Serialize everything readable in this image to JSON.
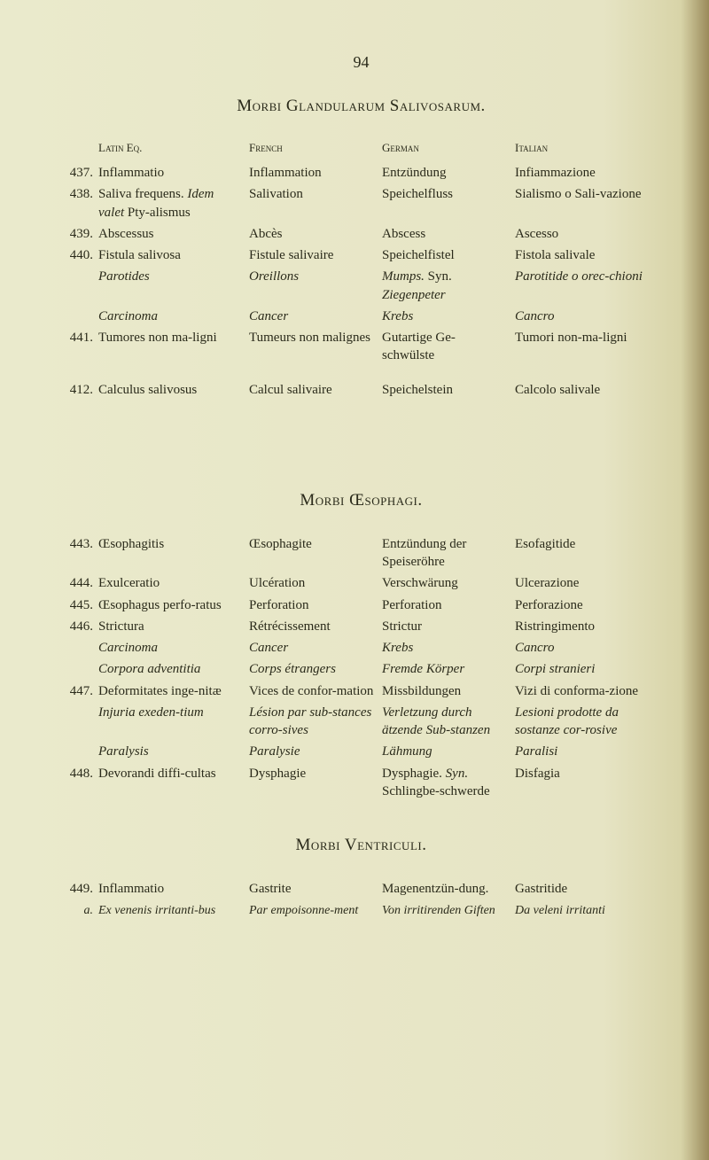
{
  "page_number": "94",
  "section1": {
    "title": "Morbi Glandularum Salivosarum.",
    "headers": {
      "latin": "Latin Eq.",
      "french": "French",
      "german": "German",
      "italian": "Italian"
    },
    "rows": [
      {
        "num": "437.",
        "latin": "Inflammatio",
        "french": "Inflammation",
        "german": "Entzündung",
        "italian": "Infiammazione"
      },
      {
        "num": "438.",
        "latin_html": "Saliva frequens. <span class='ital'>Idem valet</span> Pty-alismus",
        "french": "Salivation",
        "german": "Speichelfluss",
        "italian": "Sialismo o Sali-vazione"
      },
      {
        "num": "439.",
        "latin": "Abscessus",
        "french": "Abcès",
        "german": "Abscess",
        "italian": "Ascesso"
      },
      {
        "num": "440.",
        "latin": "Fistula salivosa",
        "french": "Fistule salivaire",
        "german": "Speichelfistel",
        "italian": "Fistola salivale"
      },
      {
        "num": "",
        "latin_html": "<span class='ital'>Parotides</span>",
        "french_html": "<span class='ital'>Oreillons</span>",
        "german_html": "<span class='ital'>Mumps.</span> Syn. <span class='ital'>Ziegenpeter</span>",
        "italian_html": "<span class='ital'>Parotitide o orec-chioni</span>"
      },
      {
        "num": "",
        "latin_html": "<span class='ital'>Carcinoma</span>",
        "french_html": "<span class='ital'>Cancer</span>",
        "german_html": "<span class='ital'>Krebs</span>",
        "italian_html": "<span class='ital'>Cancro</span>"
      },
      {
        "num": "441.",
        "latin": "Tumores non ma-ligni",
        "french": "Tumeurs non malignes",
        "german": "Gutartige Ge-schwülste",
        "italian": "Tumori non-ma-ligni"
      },
      {
        "num": "412.",
        "latin": "Calculus salivosus",
        "french": "Calcul salivaire",
        "german": "Speichelstein",
        "italian": "Calcolo salivale",
        "gap_before": true
      }
    ]
  },
  "section2": {
    "title": "Morbi Œsophagi.",
    "rows": [
      {
        "num": "443.",
        "latin": "Œsophagitis",
        "french": "Œsophagite",
        "german": "Entzündung der Speiseröhre",
        "italian": "Esofagitide"
      },
      {
        "num": "444.",
        "latin": "Exulceratio",
        "french": "Ulcération",
        "german": "Verschwärung",
        "italian": "Ulcerazione"
      },
      {
        "num": "445.",
        "latin": "Œsophagus perfo-ratus",
        "french": "Perforation",
        "german": "Perforation",
        "italian": "Perforazione"
      },
      {
        "num": "446.",
        "latin": "Strictura",
        "french": "Rétrécissement",
        "german": "Strictur",
        "italian": "Ristringimento"
      },
      {
        "num": "",
        "latin_html": "<span class='ital'>Carcinoma</span>",
        "french_html": "<span class='ital'>Cancer</span>",
        "german_html": "<span class='ital'>Krebs</span>",
        "italian_html": "<span class='ital'>Cancro</span>"
      },
      {
        "num": "",
        "latin_html": "<span class='ital'>Corpora adventitia</span>",
        "french_html": "<span class='ital'>Corps étrangers</span>",
        "german_html": "<span class='ital'>Fremde Körper</span>",
        "italian_html": "<span class='ital'>Corpi stranieri</span>"
      },
      {
        "num": "447.",
        "latin": "Deformitates inge-nitæ",
        "french": "Vices de confor-mation",
        "german": "Missbildungen",
        "italian": "Vizi di conforma-zione"
      },
      {
        "num": "",
        "latin_html": "<span class='ital'>Injuria exeden-tium</span>",
        "french_html": "<span class='ital'>Lésion par sub-stances corro-sives</span>",
        "german_html": "<span class='ital'>Verletzung durch ätzende Sub-stanzen</span>",
        "italian_html": "<span class='ital'>Lesioni prodotte da sostanze cor-rosive</span>"
      },
      {
        "num": "",
        "latin_html": "<span class='ital'>Paralysis</span>",
        "french_html": "<span class='ital'>Paralysie</span>",
        "german_html": "<span class='ital'>Lähmung</span>",
        "italian_html": "<span class='ital'>Paralisi</span>"
      },
      {
        "num": "448.",
        "latin": "Devorandi diffi-cultas",
        "french": "Dysphagie",
        "german_html": "Dysphagie. <span class='ital'>Syn.</span> Schlingbe-schwerde",
        "italian": "Disfagia"
      }
    ]
  },
  "section3": {
    "title": "Morbi Ventriculi.",
    "rows": [
      {
        "num": "449.",
        "latin": "Inflammatio",
        "french": "Gastrite",
        "german": "Magenentzün-dung.",
        "italian": "Gastritide"
      }
    ],
    "footnote": {
      "letter": "a.",
      "latin": "Ex venenis irritanti-bus",
      "french": "Par empoisonne-ment",
      "german": "Von irritirenden Giften",
      "italian": "Da veleni irritanti"
    }
  }
}
